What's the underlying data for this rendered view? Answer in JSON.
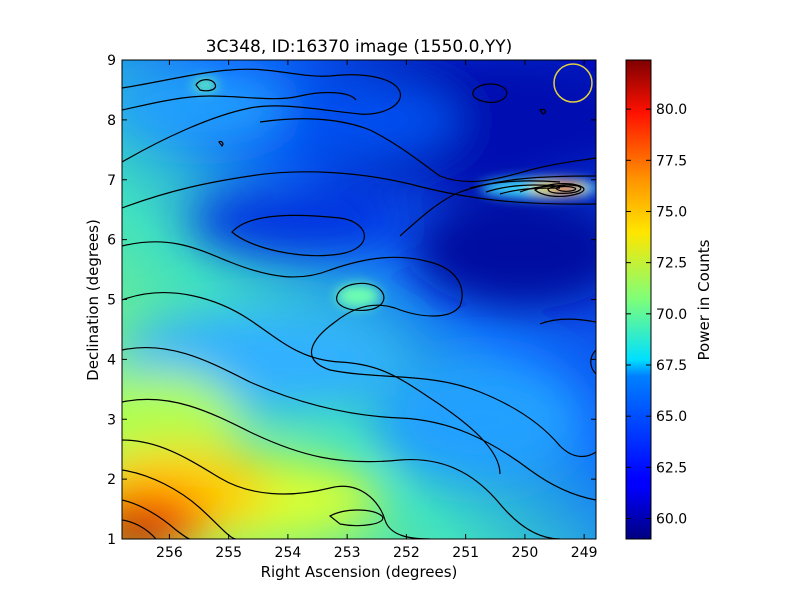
{
  "chart_data": {
    "type": "heatmap",
    "title": "3C348, ID:16370 image (1550.0,YY)",
    "xlabel": "Right Ascension (degrees)",
    "ylabel": "Declination (degrees)",
    "colorbar_label": "Power in Counts",
    "xlim": [
      256.8,
      248.8
    ],
    "ylim": [
      1,
      9
    ],
    "x_ticks": [
      256,
      255,
      254,
      253,
      252,
      251,
      250,
      249
    ],
    "y_ticks": [
      1,
      2,
      3,
      4,
      5,
      6,
      7,
      8,
      9
    ],
    "color_range": [
      59,
      82.4
    ],
    "colorbar_ticks": [
      "60.0",
      "62.5",
      "65.0",
      "67.5",
      "70.0",
      "72.5",
      "75.0",
      "77.5",
      "80.0"
    ],
    "colormap": "jet",
    "contours": "on",
    "grid": false,
    "features": [
      {
        "kind": "peak",
        "ra": 249.35,
        "dec": 6.85,
        "value": 80
      },
      {
        "kind": "maximum",
        "ra": 256.6,
        "dec": 1.2,
        "value": 82
      },
      {
        "kind": "local-maximum",
        "ra": 252.8,
        "dec": 5.0,
        "value": 68
      },
      {
        "kind": "marker-circle",
        "ra": 249.3,
        "dec": 8.65,
        "color": "#e0d040"
      }
    ]
  }
}
